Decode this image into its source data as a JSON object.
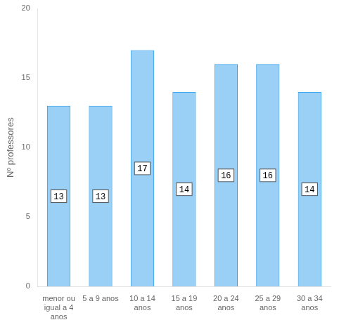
{
  "chart_data": {
    "type": "bar",
    "categories": [
      "menor ou\nigual a 4\nanos",
      "5 a 9 anos",
      "10 a 14\nanos",
      "15 a 19\nanos",
      "20 a 24\nanos",
      "25 a 29\nanos",
      "30 a 34\nanos"
    ],
    "values": [
      13,
      13,
      17,
      14,
      16,
      16,
      14
    ],
    "ylabel": "Nº professores",
    "ylim": [
      0,
      20
    ],
    "yticks": [
      0,
      5,
      10,
      15,
      20
    ],
    "grid": false,
    "data_labels": true
  }
}
